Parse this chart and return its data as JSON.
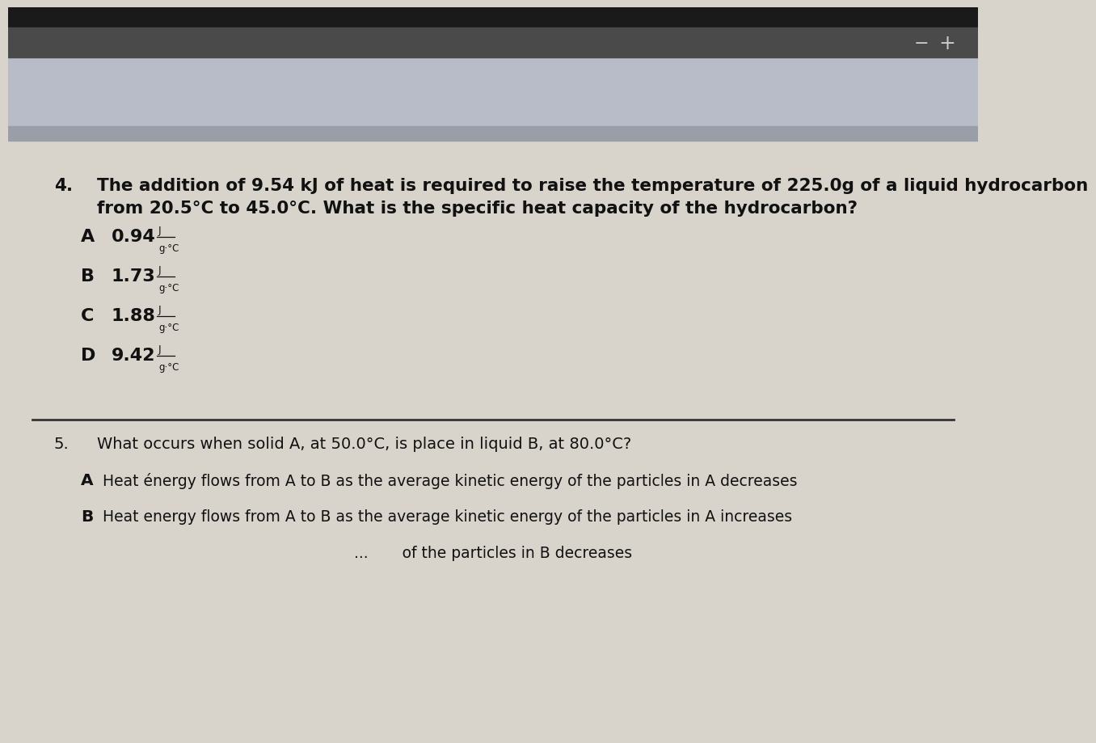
{
  "bg_very_top": "#1a1a1a",
  "bg_toolbar": "#4a4a4a",
  "bg_strip_light": "#c8c4bc",
  "bg_strip_medium": "#b0acaa",
  "bg_content": "#d8d4cc",
  "text_color": "#111111",
  "minus_plus_color": "#222222",
  "q4_number": "4.",
  "q4_text_line1": "The addition of 9.54 kJ of heat is required to raise the temperature of 225.0g of a liquid hydrocarbon",
  "q4_text_line2": "from 20.5°C to 45.0°C. What is the specific heat capacity of the hydrocarbon?",
  "q4_A_val": "0.94",
  "q4_B_val": "1.73",
  "q4_C_val": "1.88",
  "q4_D_val": "9.42",
  "unit_num": "J",
  "unit_den": "g·°C",
  "q5_number": "5.",
  "q5_text": "What occurs when solid A, at 50.0°C, is place in liquid B, at 80.0°C?",
  "q5_A_text": "Heat énergy flows from A to B as the average kinetic energy of the particles in A decreases",
  "q5_B_text": "Heat energy flows from A to B as the average kinetic energy of the particles in A increases",
  "q5_C_partial": "of the particles in B decreases"
}
